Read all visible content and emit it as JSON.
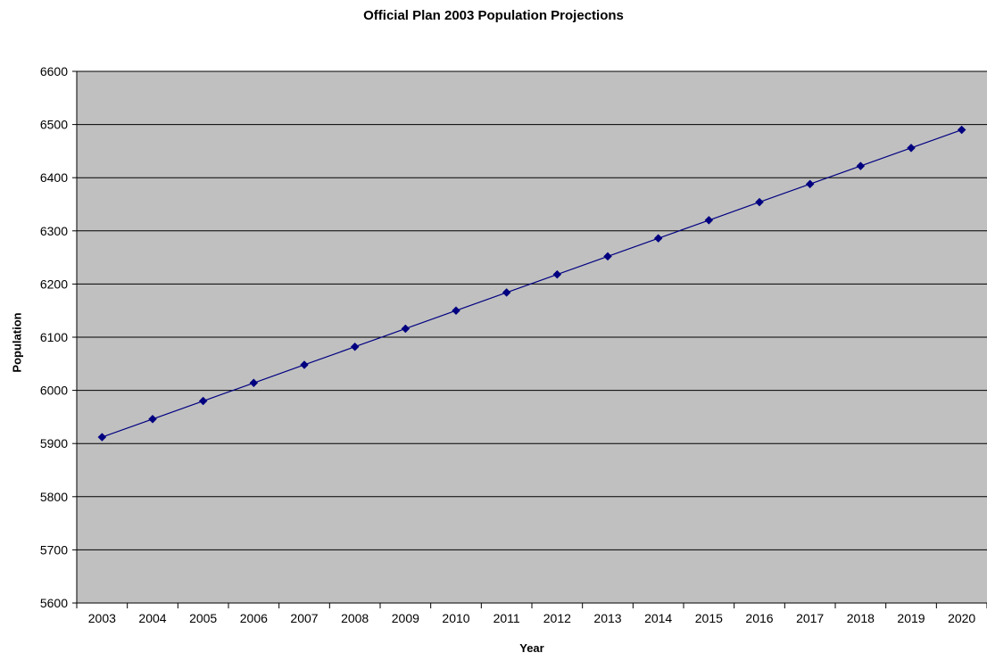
{
  "chart_data": {
    "type": "line",
    "title": "Official Plan 2003 Population Projections",
    "xlabel": "Year",
    "ylabel": "Population",
    "categories": [
      "2003",
      "2004",
      "2005",
      "2006",
      "2007",
      "2008",
      "2009",
      "2010",
      "2011",
      "2012",
      "2013",
      "2014",
      "2015",
      "2016",
      "2017",
      "2018",
      "2019",
      "2020"
    ],
    "series": [
      {
        "values": [
          5912,
          5946,
          5980,
          6014,
          6048,
          6082,
          6116,
          6150,
          6184,
          6218,
          6252,
          6286,
          6320,
          6354,
          6388,
          6422,
          6456,
          6490
        ],
        "color": "#000080",
        "marker": "diamond"
      }
    ],
    "ylim": [
      5600,
      6600
    ],
    "yticks": [
      5600,
      5700,
      5800,
      5900,
      6000,
      6100,
      6200,
      6300,
      6400,
      6500,
      6600
    ],
    "grid": true,
    "plot_background": "#c0c0c0",
    "legend": "none"
  }
}
